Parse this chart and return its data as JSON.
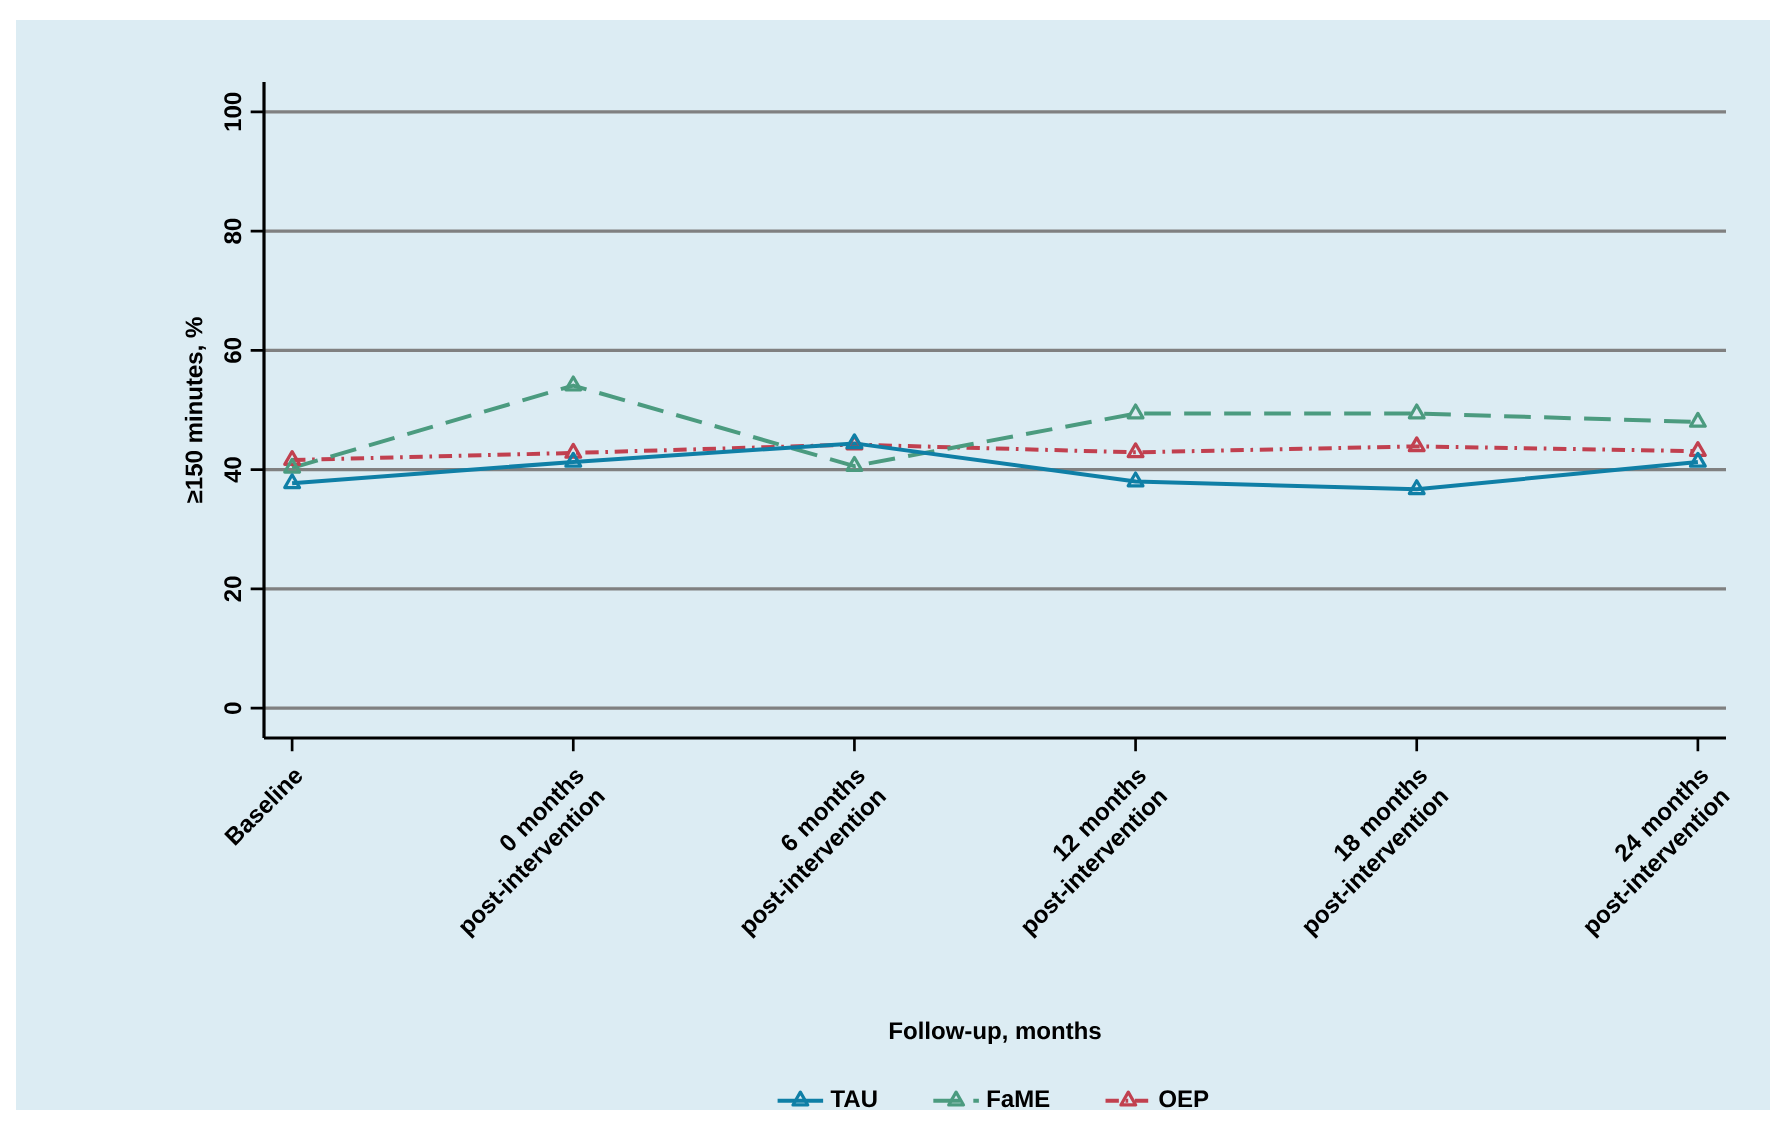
{
  "chart_data": {
    "type": "line",
    "xlabel": "Follow-up, months",
    "ylabel": "≥150 minutes, %",
    "categories": [
      "Baseline",
      "0 months post-intervention",
      "6 months post-intervention",
      "12 months post-intervention",
      "18 months post-intervention",
      "24 months post-intervention"
    ],
    "series": [
      {
        "name": "TAU",
        "color": "#0f7fa6",
        "line_style": "solid",
        "values": [
          37.7,
          41.3,
          44.4,
          38.0,
          36.7,
          41.3
        ]
      },
      {
        "name": "FaME",
        "color": "#4b9b7f",
        "line_style": "dashed",
        "values": [
          40.3,
          54.1,
          40.6,
          49.4,
          49.4,
          48.0
        ]
      },
      {
        "name": "OEP",
        "color": "#c1404f",
        "line_style": "dashdot",
        "values": [
          41.6,
          42.8,
          44.2,
          42.9,
          43.9,
          43.1
        ]
      }
    ],
    "ylim": [
      -5,
      105
    ],
    "yticks": [
      0,
      20,
      40,
      60,
      80,
      100
    ],
    "grid": "y",
    "legend": "bottom",
    "marker": "triangle"
  }
}
